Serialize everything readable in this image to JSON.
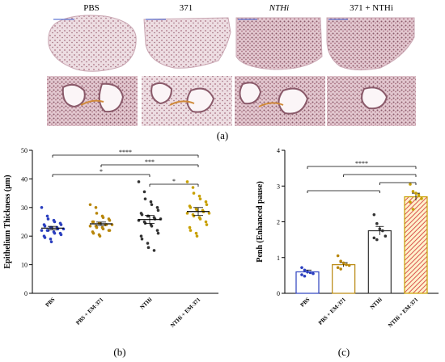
{
  "panel_a": {
    "column_labels": [
      "PBS",
      "371",
      "NTHi",
      "371 + NTHi"
    ],
    "label": "(a)"
  },
  "colors": {
    "pbs": "#2b3fbf",
    "em371": "#b8860b",
    "nthi": "#333333",
    "combo": "#c8a000",
    "combo_hatch": "#d9534f",
    "tissue_pink": "#e8cfd6",
    "tissue_dark": "#8a5a6a"
  },
  "chart_data": [
    {
      "type": "scatter",
      "panel_label": "(b)",
      "ylabel": "Epithelium Thickness (μm)",
      "ylim": [
        0,
        50
      ],
      "yticks": [
        0,
        10,
        20,
        30,
        40,
        50
      ],
      "categories": [
        "PBS",
        "PBS + EM-371",
        "NTHi",
        "NTHi + EM-371"
      ],
      "means": [
        22.8,
        24.3,
        25.8,
        28.6
      ],
      "sems": [
        0.6,
        0.6,
        1.4,
        1.4
      ],
      "series": [
        {
          "values": [
            30,
            27,
            26,
            25.5,
            25,
            24.5,
            24,
            24,
            23.5,
            23,
            23,
            23,
            22.5,
            22.5,
            22,
            22,
            22,
            21.5,
            21,
            21,
            20.5,
            20,
            19.5,
            19,
            18
          ]
        },
        {
          "values": [
            31,
            30,
            28,
            27,
            26.5,
            26,
            25.5,
            25,
            25,
            24.5,
            24.5,
            24,
            24,
            24,
            23.5,
            23.5,
            23,
            23,
            22.5,
            22,
            22,
            21.5,
            21,
            20.5,
            20
          ]
        },
        {
          "values": [
            39,
            35.5,
            33,
            32,
            31,
            30,
            29,
            28,
            27.5,
            27,
            27,
            26.5,
            26,
            26,
            25.5,
            25,
            24.5,
            24,
            23.5,
            22,
            21,
            20,
            19,
            17.5,
            16,
            15
          ]
        },
        {
          "values": [
            39,
            37,
            35,
            34,
            33,
            32,
            31,
            30.5,
            30,
            29.5,
            29,
            29,
            28.5,
            28,
            28,
            27.5,
            27,
            26.5,
            26,
            25,
            24,
            23,
            22,
            21,
            20
          ]
        }
      ],
      "significance": [
        {
          "from": 0,
          "to": 3,
          "label": "****"
        },
        {
          "from": 1,
          "to": 3,
          "label": "***"
        },
        {
          "from": 0,
          "to": 2,
          "label": "*"
        },
        {
          "from": 2,
          "to": 3,
          "label": "*"
        }
      ]
    },
    {
      "type": "bar",
      "panel_label": "(c)",
      "ylabel": "Penh (Enhanced pause)",
      "ylim": [
        0,
        4
      ],
      "yticks": [
        0,
        1,
        2,
        3,
        4
      ],
      "categories": [
        "PBS",
        "PBS + EM-371",
        "NTHi",
        "NTHi + EM-371"
      ],
      "values": [
        0.6,
        0.8,
        1.75,
        2.7
      ],
      "errors": [
        0.05,
        0.06,
        0.12,
        0.1
      ],
      "points": [
        [
          0.72,
          0.65,
          0.6,
          0.58,
          0.55,
          0.52,
          0.48
        ],
        [
          1.05,
          0.9,
          0.85,
          0.8,
          0.78,
          0.72,
          0.68
        ],
        [
          2.2,
          1.95,
          1.8,
          1.75,
          1.6,
          1.55,
          1.5
        ],
        [
          3.05,
          2.85,
          2.8,
          2.75,
          2.65,
          2.55,
          2.35
        ]
      ],
      "significance": [
        {
          "from": 0,
          "to": 3,
          "label": "****"
        },
        {
          "from": 1,
          "to": 3,
          "label": ""
        },
        {
          "from": 2,
          "to": 3,
          "label": ""
        },
        {
          "from": 0,
          "to": 2,
          "label": ""
        }
      ]
    }
  ]
}
